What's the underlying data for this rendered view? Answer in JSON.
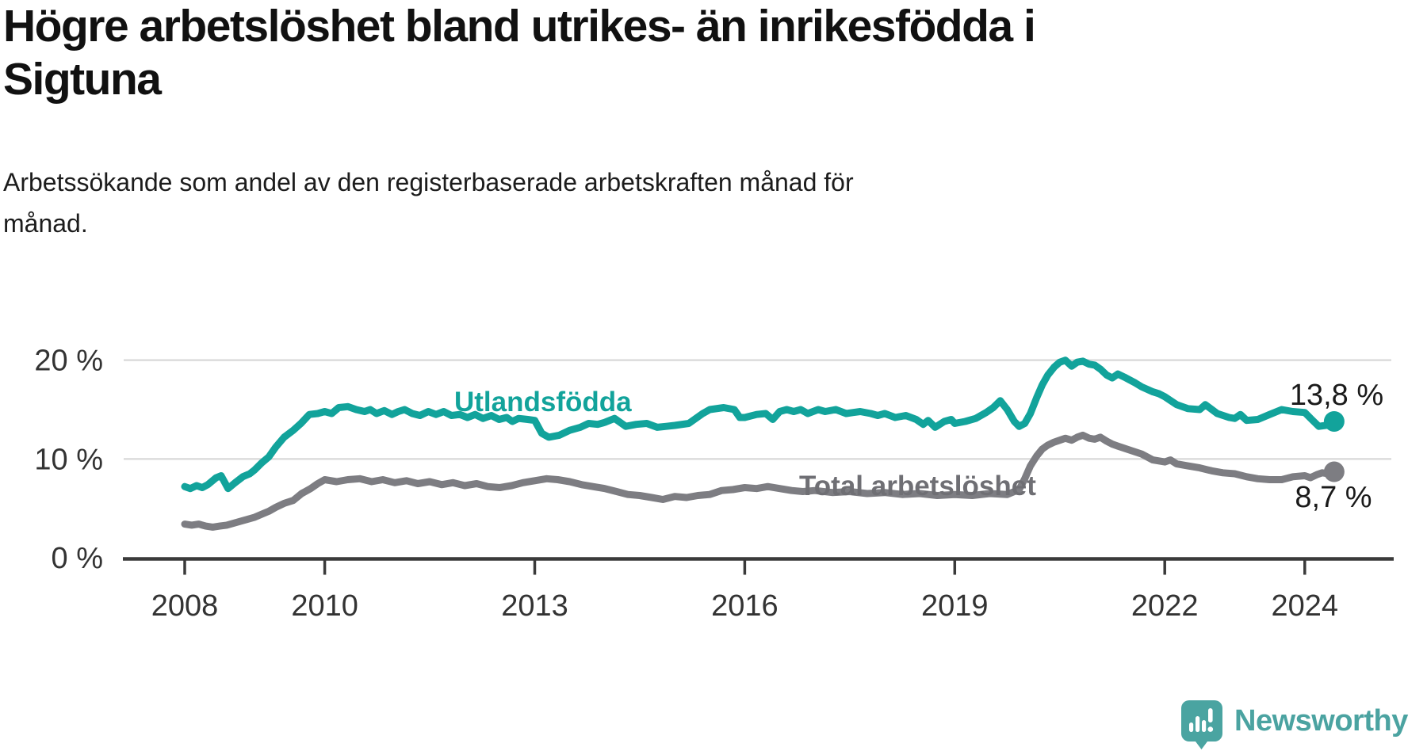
{
  "header": {
    "title_line1": "Högre arbetslöshet bland utrikes- än inrikesfödda i",
    "title_line2": "Sigtuna",
    "subtitle_line1": "Arbetssökande som andel av den registerbaserade arbetskraften månad för",
    "subtitle_line2": "månad."
  },
  "colors": {
    "foreign_born_line": "#12a39b",
    "total_line": "#7d7d82",
    "total_label": "#6f6f74",
    "end_label_text": "#1a1a1a",
    "axis": "#3a3a3a",
    "tick_label": "#333333",
    "gridline": "#dcdcdc",
    "logo_teal": "#4ba3a1",
    "background": "#ffffff"
  },
  "branding": {
    "logo_text": "Newsworthy",
    "logo_icon": "newsworthy-speech-bubble-bar-chart-icon"
  },
  "chart_data": {
    "type": "line",
    "title": "Högre arbetslöshet bland utrikes- än inrikesfödda i Sigtuna",
    "subtitle": "Arbetssökande som andel av den registerbaserade arbetskraften månad för månad.",
    "xlabel": "",
    "ylabel": "",
    "unit": "%",
    "grid": "horizontal",
    "x_range": [
      2008,
      2024.42
    ],
    "ylim": [
      0,
      21
    ],
    "x_ticks": [
      {
        "t": 2008,
        "label": "2008"
      },
      {
        "t": 2010,
        "label": "2010"
      },
      {
        "t": 2013,
        "label": "2013"
      },
      {
        "t": 2016,
        "label": "2016"
      },
      {
        "t": 2019,
        "label": "2019"
      },
      {
        "t": 2022,
        "label": "2022"
      },
      {
        "t": 2024,
        "label": "2024"
      }
    ],
    "y_ticks": [
      {
        "v": 0,
        "label": "0 %"
      },
      {
        "v": 10,
        "label": "10 %"
      },
      {
        "v": 20,
        "label": "20 %"
      }
    ],
    "series": [
      {
        "name": "Utlandsfödda",
        "color": "#12a39b",
        "end_label": "13,8 %",
        "end_value": 13.8,
        "points": [
          [
            2008.0,
            7.2
          ],
          [
            2008.08,
            7.0
          ],
          [
            2008.17,
            7.3
          ],
          [
            2008.25,
            7.1
          ],
          [
            2008.33,
            7.4
          ],
          [
            2008.45,
            8.1
          ],
          [
            2008.52,
            8.3
          ],
          [
            2008.62,
            7.0
          ],
          [
            2008.72,
            7.6
          ],
          [
            2008.83,
            8.2
          ],
          [
            2008.93,
            8.5
          ],
          [
            2009.0,
            8.9
          ],
          [
            2009.1,
            9.6
          ],
          [
            2009.2,
            10.2
          ],
          [
            2009.3,
            11.2
          ],
          [
            2009.42,
            12.2
          ],
          [
            2009.55,
            12.9
          ],
          [
            2009.66,
            13.6
          ],
          [
            2009.78,
            14.5
          ],
          [
            2009.9,
            14.6
          ],
          [
            2010.0,
            14.8
          ],
          [
            2010.1,
            14.6
          ],
          [
            2010.2,
            15.2
          ],
          [
            2010.33,
            15.3
          ],
          [
            2010.45,
            15.0
          ],
          [
            2010.57,
            14.8
          ],
          [
            2010.65,
            15.0
          ],
          [
            2010.74,
            14.6
          ],
          [
            2010.85,
            14.9
          ],
          [
            2010.96,
            14.5
          ],
          [
            2011.05,
            14.8
          ],
          [
            2011.14,
            15.0
          ],
          [
            2011.25,
            14.6
          ],
          [
            2011.36,
            14.4
          ],
          [
            2011.48,
            14.8
          ],
          [
            2011.59,
            14.5
          ],
          [
            2011.7,
            14.8
          ],
          [
            2011.81,
            14.4
          ],
          [
            2011.93,
            14.5
          ],
          [
            2012.04,
            14.2
          ],
          [
            2012.15,
            14.5
          ],
          [
            2012.26,
            14.1
          ],
          [
            2012.38,
            14.4
          ],
          [
            2012.49,
            14.0
          ],
          [
            2012.6,
            14.2
          ],
          [
            2012.68,
            13.8
          ],
          [
            2012.77,
            14.1
          ],
          [
            2012.9,
            14.0
          ],
          [
            2013.0,
            13.9
          ],
          [
            2013.1,
            12.6
          ],
          [
            2013.2,
            12.2
          ],
          [
            2013.35,
            12.4
          ],
          [
            2013.5,
            12.9
          ],
          [
            2013.65,
            13.2
          ],
          [
            2013.77,
            13.6
          ],
          [
            2013.9,
            13.5
          ],
          [
            2014.0,
            13.7
          ],
          [
            2014.14,
            14.1
          ],
          [
            2014.3,
            13.3
          ],
          [
            2014.45,
            13.5
          ],
          [
            2014.6,
            13.6
          ],
          [
            2014.75,
            13.2
          ],
          [
            2014.88,
            13.3
          ],
          [
            2015.0,
            13.4
          ],
          [
            2015.2,
            13.6
          ],
          [
            2015.4,
            14.6
          ],
          [
            2015.5,
            15.0
          ],
          [
            2015.7,
            15.2
          ],
          [
            2015.85,
            15.0
          ],
          [
            2015.93,
            14.2
          ],
          [
            2016.0,
            14.2
          ],
          [
            2016.17,
            14.5
          ],
          [
            2016.3,
            14.6
          ],
          [
            2016.4,
            14.0
          ],
          [
            2016.5,
            14.8
          ],
          [
            2016.6,
            15.0
          ],
          [
            2016.7,
            14.8
          ],
          [
            2016.8,
            15.0
          ],
          [
            2016.9,
            14.6
          ],
          [
            2017.05,
            15.0
          ],
          [
            2017.15,
            14.8
          ],
          [
            2017.3,
            15.0
          ],
          [
            2017.45,
            14.6
          ],
          [
            2017.55,
            14.7
          ],
          [
            2017.65,
            14.8
          ],
          [
            2017.8,
            14.6
          ],
          [
            2017.9,
            14.4
          ],
          [
            2018.0,
            14.6
          ],
          [
            2018.15,
            14.2
          ],
          [
            2018.3,
            14.4
          ],
          [
            2018.45,
            14.0
          ],
          [
            2018.55,
            13.5
          ],
          [
            2018.62,
            13.9
          ],
          [
            2018.72,
            13.2
          ],
          [
            2018.85,
            13.8
          ],
          [
            2018.95,
            14.0
          ],
          [
            2019.0,
            13.6
          ],
          [
            2019.15,
            13.8
          ],
          [
            2019.3,
            14.1
          ],
          [
            2019.45,
            14.7
          ],
          [
            2019.55,
            15.2
          ],
          [
            2019.65,
            15.9
          ],
          [
            2019.75,
            15.0
          ],
          [
            2019.85,
            13.8
          ],
          [
            2019.92,
            13.3
          ],
          [
            2020.0,
            13.6
          ],
          [
            2020.08,
            14.6
          ],
          [
            2020.17,
            16.2
          ],
          [
            2020.25,
            17.5
          ],
          [
            2020.33,
            18.5
          ],
          [
            2020.42,
            19.3
          ],
          [
            2020.5,
            19.8
          ],
          [
            2020.58,
            20.0
          ],
          [
            2020.67,
            19.4
          ],
          [
            2020.75,
            19.8
          ],
          [
            2020.83,
            19.9
          ],
          [
            2020.92,
            19.6
          ],
          [
            2021.0,
            19.5
          ],
          [
            2021.08,
            19.1
          ],
          [
            2021.17,
            18.5
          ],
          [
            2021.25,
            18.2
          ],
          [
            2021.33,
            18.6
          ],
          [
            2021.42,
            18.3
          ],
          [
            2021.5,
            18.0
          ],
          [
            2021.58,
            17.7
          ],
          [
            2021.67,
            17.3
          ],
          [
            2021.83,
            16.8
          ],
          [
            2021.92,
            16.6
          ],
          [
            2022.0,
            16.3
          ],
          [
            2022.17,
            15.5
          ],
          [
            2022.33,
            15.1
          ],
          [
            2022.5,
            15.0
          ],
          [
            2022.58,
            15.5
          ],
          [
            2022.75,
            14.6
          ],
          [
            2022.92,
            14.2
          ],
          [
            2023.0,
            14.1
          ],
          [
            2023.08,
            14.5
          ],
          [
            2023.17,
            13.9
          ],
          [
            2023.33,
            14.0
          ],
          [
            2023.5,
            14.5
          ],
          [
            2023.67,
            15.0
          ],
          [
            2023.83,
            14.8
          ],
          [
            2024.0,
            14.7
          ],
          [
            2024.1,
            14.0
          ],
          [
            2024.2,
            13.3
          ],
          [
            2024.3,
            13.4
          ],
          [
            2024.42,
            13.8
          ]
        ]
      },
      {
        "name": "Total arbetslöshet",
        "color": "#7d7d82",
        "end_label": "8,7 %",
        "end_value": 8.7,
        "points": [
          [
            2008.0,
            3.4
          ],
          [
            2008.1,
            3.3
          ],
          [
            2008.2,
            3.4
          ],
          [
            2008.3,
            3.2
          ],
          [
            2008.4,
            3.1
          ],
          [
            2008.5,
            3.2
          ],
          [
            2008.6,
            3.3
          ],
          [
            2008.7,
            3.5
          ],
          [
            2008.8,
            3.7
          ],
          [
            2008.9,
            3.9
          ],
          [
            2009.0,
            4.1
          ],
          [
            2009.1,
            4.4
          ],
          [
            2009.2,
            4.7
          ],
          [
            2009.3,
            5.1
          ],
          [
            2009.42,
            5.5
          ],
          [
            2009.55,
            5.8
          ],
          [
            2009.67,
            6.5
          ],
          [
            2009.8,
            7.0
          ],
          [
            2009.9,
            7.5
          ],
          [
            2010.0,
            7.9
          ],
          [
            2010.17,
            7.7
          ],
          [
            2010.33,
            7.9
          ],
          [
            2010.5,
            8.0
          ],
          [
            2010.67,
            7.7
          ],
          [
            2010.83,
            7.9
          ],
          [
            2011.0,
            7.6
          ],
          [
            2011.17,
            7.8
          ],
          [
            2011.33,
            7.5
          ],
          [
            2011.5,
            7.7
          ],
          [
            2011.67,
            7.4
          ],
          [
            2011.83,
            7.6
          ],
          [
            2012.0,
            7.3
          ],
          [
            2012.17,
            7.5
          ],
          [
            2012.33,
            7.2
          ],
          [
            2012.5,
            7.1
          ],
          [
            2012.67,
            7.3
          ],
          [
            2012.83,
            7.6
          ],
          [
            2013.0,
            7.8
          ],
          [
            2013.17,
            8.0
          ],
          [
            2013.33,
            7.9
          ],
          [
            2013.5,
            7.7
          ],
          [
            2013.67,
            7.4
          ],
          [
            2013.83,
            7.2
          ],
          [
            2014.0,
            7.0
          ],
          [
            2014.17,
            6.7
          ],
          [
            2014.33,
            6.4
          ],
          [
            2014.5,
            6.3
          ],
          [
            2014.67,
            6.1
          ],
          [
            2014.83,
            5.9
          ],
          [
            2015.0,
            6.2
          ],
          [
            2015.17,
            6.1
          ],
          [
            2015.33,
            6.3
          ],
          [
            2015.5,
            6.4
          ],
          [
            2015.67,
            6.8
          ],
          [
            2015.83,
            6.9
          ],
          [
            2016.0,
            7.1
          ],
          [
            2016.17,
            7.0
          ],
          [
            2016.33,
            7.2
          ],
          [
            2016.5,
            7.0
          ],
          [
            2016.67,
            6.8
          ],
          [
            2016.83,
            6.7
          ],
          [
            2017.0,
            6.8
          ],
          [
            2017.25,
            6.6
          ],
          [
            2017.5,
            6.7
          ],
          [
            2017.75,
            6.5
          ],
          [
            2018.0,
            6.6
          ],
          [
            2018.25,
            6.4
          ],
          [
            2018.5,
            6.5
          ],
          [
            2018.75,
            6.3
          ],
          [
            2019.0,
            6.4
          ],
          [
            2019.25,
            6.3
          ],
          [
            2019.5,
            6.5
          ],
          [
            2019.75,
            6.4
          ],
          [
            2019.92,
            6.9
          ],
          [
            2020.0,
            8.0
          ],
          [
            2020.08,
            9.3
          ],
          [
            2020.17,
            10.3
          ],
          [
            2020.25,
            11.0
          ],
          [
            2020.33,
            11.4
          ],
          [
            2020.42,
            11.7
          ],
          [
            2020.5,
            11.9
          ],
          [
            2020.58,
            12.1
          ],
          [
            2020.67,
            11.9
          ],
          [
            2020.75,
            12.2
          ],
          [
            2020.83,
            12.4
          ],
          [
            2020.92,
            12.1
          ],
          [
            2021.0,
            12.0
          ],
          [
            2021.08,
            12.2
          ],
          [
            2021.17,
            11.8
          ],
          [
            2021.25,
            11.5
          ],
          [
            2021.33,
            11.3
          ],
          [
            2021.5,
            10.9
          ],
          [
            2021.67,
            10.5
          ],
          [
            2021.83,
            9.9
          ],
          [
            2022.0,
            9.7
          ],
          [
            2022.08,
            9.9
          ],
          [
            2022.17,
            9.5
          ],
          [
            2022.33,
            9.3
          ],
          [
            2022.5,
            9.1
          ],
          [
            2022.67,
            8.8
          ],
          [
            2022.83,
            8.6
          ],
          [
            2023.0,
            8.5
          ],
          [
            2023.17,
            8.2
          ],
          [
            2023.33,
            8.0
          ],
          [
            2023.5,
            7.9
          ],
          [
            2023.67,
            7.9
          ],
          [
            2023.83,
            8.2
          ],
          [
            2024.0,
            8.3
          ],
          [
            2024.08,
            8.1
          ],
          [
            2024.17,
            8.4
          ],
          [
            2024.25,
            8.6
          ],
          [
            2024.33,
            8.5
          ],
          [
            2024.42,
            8.7
          ]
        ]
      }
    ]
  }
}
